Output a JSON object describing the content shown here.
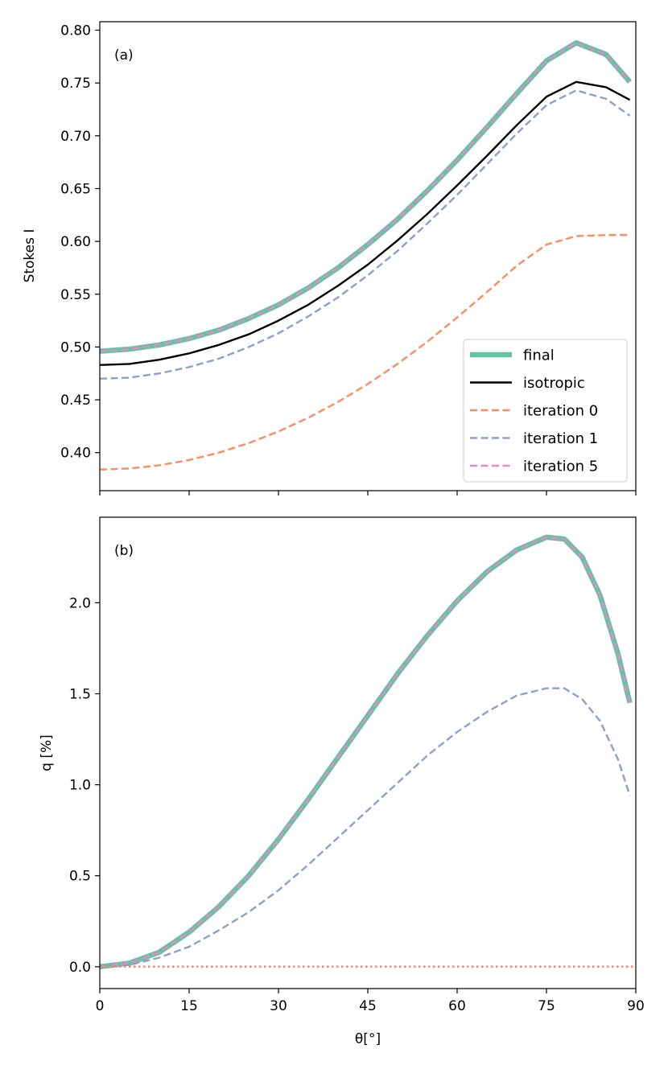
{
  "chart_data": [
    {
      "type": "line",
      "panel_label": "(a)",
      "xlabel": "",
      "ylabel": "Stokes I",
      "xlim": [
        0,
        90
      ],
      "ylim": [
        0.364,
        0.808
      ],
      "x_ticks": [
        0,
        15,
        30,
        45,
        60,
        75,
        90
      ],
      "x_tick_labels_visible": false,
      "y_ticks": [
        0.4,
        0.45,
        0.5,
        0.55,
        0.6,
        0.65,
        0.7,
        0.75,
        0.8
      ],
      "y_tick_labels": [
        "0.40",
        "0.45",
        "0.50",
        "0.55",
        "0.60",
        "0.65",
        "0.70",
        "0.75",
        "0.80"
      ],
      "legend": {
        "placement": "lower-right",
        "entries": [
          "final",
          "isotropic",
          "iteration 0",
          "iteration 1",
          "iteration 5"
        ]
      },
      "series": [
        {
          "name": "final",
          "color": "#66c2a5",
          "style": "solid-thick",
          "x": [
            0,
            5,
            10,
            15,
            20,
            25,
            30,
            35,
            40,
            45,
            50,
            55,
            60,
            65,
            70,
            75,
            80,
            85,
            89
          ],
          "values": [
            0.496,
            0.498,
            0.502,
            0.508,
            0.516,
            0.527,
            0.54,
            0.556,
            0.575,
            0.597,
            0.621,
            0.648,
            0.677,
            0.708,
            0.74,
            0.771,
            0.788,
            0.777,
            0.751
          ]
        },
        {
          "name": "isotropic",
          "color": "#000000",
          "style": "solid",
          "x": [
            0,
            5,
            10,
            15,
            20,
            25,
            30,
            35,
            40,
            45,
            50,
            55,
            60,
            65,
            70,
            75,
            80,
            85,
            89
          ],
          "values": [
            0.483,
            0.484,
            0.488,
            0.494,
            0.502,
            0.512,
            0.525,
            0.54,
            0.558,
            0.578,
            0.601,
            0.626,
            0.653,
            0.681,
            0.71,
            0.737,
            0.751,
            0.746,
            0.734
          ]
        },
        {
          "name": "iteration 0",
          "color": "#fc8d62",
          "style": "dashed",
          "x": [
            0,
            5,
            10,
            15,
            20,
            25,
            30,
            35,
            40,
            45,
            50,
            55,
            60,
            65,
            70,
            75,
            80,
            85,
            89
          ],
          "values": [
            0.384,
            0.385,
            0.388,
            0.393,
            0.4,
            0.409,
            0.42,
            0.433,
            0.448,
            0.465,
            0.484,
            0.505,
            0.528,
            0.552,
            0.577,
            0.597,
            0.605,
            0.606,
            0.606
          ]
        },
        {
          "name": "iteration 1",
          "color": "#8da0cb",
          "style": "dashed",
          "x": [
            0,
            5,
            10,
            15,
            20,
            25,
            30,
            35,
            40,
            45,
            50,
            55,
            60,
            65,
            70,
            75,
            80,
            85,
            89
          ],
          "values": [
            0.47,
            0.471,
            0.475,
            0.481,
            0.489,
            0.5,
            0.513,
            0.529,
            0.547,
            0.568,
            0.591,
            0.617,
            0.644,
            0.673,
            0.702,
            0.729,
            0.743,
            0.735,
            0.719
          ]
        },
        {
          "name": "iteration 5",
          "color": "#e78ac3",
          "style": "dashed",
          "x": [
            0,
            5,
            10,
            15,
            20,
            25,
            30,
            35,
            40,
            45,
            50,
            55,
            60,
            65,
            70,
            75,
            80,
            85,
            89
          ],
          "values": [
            0.496,
            0.498,
            0.502,
            0.508,
            0.516,
            0.527,
            0.54,
            0.556,
            0.575,
            0.597,
            0.621,
            0.648,
            0.677,
            0.708,
            0.74,
            0.771,
            0.788,
            0.777,
            0.751
          ]
        }
      ]
    },
    {
      "type": "line",
      "panel_label": "(b)",
      "xlabel": "θ[°]",
      "ylabel": "q [%]",
      "xlim": [
        0,
        90
      ],
      "ylim": [
        -0.12,
        2.47
      ],
      "x_ticks": [
        0,
        15,
        30,
        45,
        60,
        75,
        90
      ],
      "x_tick_labels": [
        "0",
        "15",
        "30",
        "45",
        "60",
        "75",
        "90"
      ],
      "y_ticks": [
        0.0,
        0.5,
        1.0,
        1.5,
        2.0
      ],
      "y_tick_labels": [
        "0.0",
        "0.5",
        "1.0",
        "1.5",
        "2.0"
      ],
      "series": [
        {
          "name": "final",
          "color": "#66c2a5",
          "style": "solid-thick",
          "x": [
            0,
            5,
            10,
            15,
            20,
            25,
            30,
            35,
            40,
            45,
            50,
            55,
            60,
            65,
            70,
            75,
            78,
            81,
            84,
            87,
            89
          ],
          "values": [
            0.0,
            0.02,
            0.08,
            0.19,
            0.33,
            0.5,
            0.7,
            0.92,
            1.15,
            1.38,
            1.61,
            1.82,
            2.01,
            2.17,
            2.29,
            2.36,
            2.35,
            2.25,
            2.04,
            1.72,
            1.45
          ]
        },
        {
          "name": "iteration 1",
          "color": "#8da0cb",
          "style": "dashed",
          "x": [
            0,
            5,
            10,
            15,
            20,
            25,
            30,
            35,
            40,
            45,
            50,
            55,
            60,
            65,
            70,
            75,
            78,
            81,
            84,
            87,
            89
          ],
          "values": [
            0.0,
            0.01,
            0.05,
            0.11,
            0.2,
            0.3,
            0.42,
            0.56,
            0.71,
            0.86,
            1.01,
            1.16,
            1.29,
            1.4,
            1.49,
            1.53,
            1.53,
            1.47,
            1.35,
            1.14,
            0.94
          ]
        },
        {
          "name": "iteration 5",
          "color": "#e78ac3",
          "style": "dashed",
          "x": [
            0,
            5,
            10,
            15,
            20,
            25,
            30,
            35,
            40,
            45,
            50,
            55,
            60,
            65,
            70,
            75,
            78,
            81,
            84,
            87,
            89
          ],
          "values": [
            0.0,
            0.02,
            0.08,
            0.19,
            0.33,
            0.5,
            0.7,
            0.92,
            1.15,
            1.38,
            1.61,
            1.82,
            2.01,
            2.17,
            2.29,
            2.36,
            2.35,
            2.25,
            2.04,
            1.72,
            1.45
          ]
        },
        {
          "name": "isotropic",
          "color": "#000000",
          "style": "dotted",
          "x": [
            0,
            90
          ],
          "values": [
            0.0,
            0.0
          ]
        },
        {
          "name": "iteration 0",
          "color": "#fc8d62",
          "style": "dotted",
          "x": [
            0,
            90
          ],
          "values": [
            0.0,
            0.0
          ]
        }
      ]
    }
  ]
}
